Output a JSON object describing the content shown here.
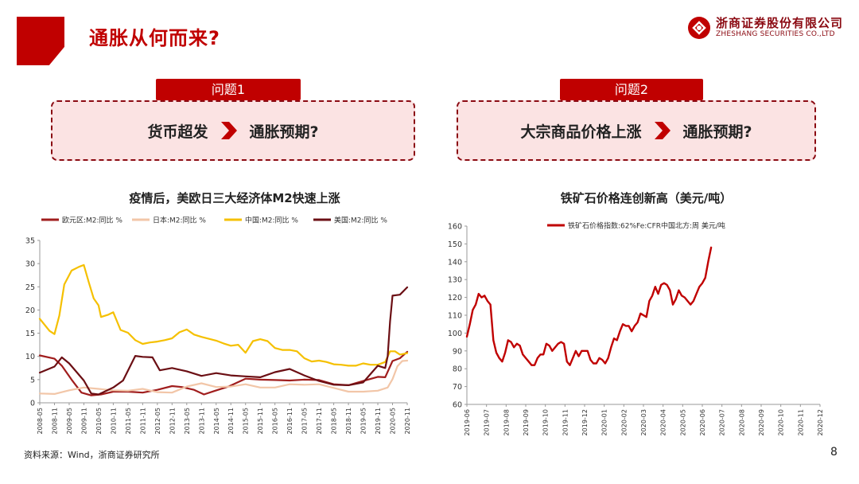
{
  "slide": {
    "title": "通胀从何而来?",
    "page_number": "8",
    "source": "资料来源：Wind，浙商证券研究所",
    "accent_color": "#c00000"
  },
  "logo": {
    "name_cn": "浙商证券股份有限公司",
    "name_en": "ZHESHANG SECURITIES CO.,LTD"
  },
  "questions": [
    {
      "tab": "问题1",
      "left": "货币超发",
      "right": "通胀预期?"
    },
    {
      "tab": "问题2",
      "left": "大宗商品价格上涨",
      "right": "通胀预期?"
    }
  ],
  "chart_data": [
    {
      "type": "line",
      "title": "疫情后，美欧日三大经济体M2快速上涨",
      "ylim": [
        0,
        35
      ],
      "yticks": [
        0,
        5,
        10,
        15,
        20,
        25,
        30,
        35
      ],
      "xlim": [
        "2008-05",
        "2020-11"
      ],
      "xticks": [
        "2008-05",
        "2008-11",
        "2009-05",
        "2009-11",
        "2010-05",
        "2010-11",
        "2011-05",
        "2011-11",
        "2012-05",
        "2012-11",
        "2013-05",
        "2013-11",
        "2014-05",
        "2014-11",
        "2015-05",
        "2015-11",
        "2016-05",
        "2016-11",
        "2017-05",
        "2017-11",
        "2018-05",
        "2018-11",
        "2019-05",
        "2019-11",
        "2020-05",
        "2020-11"
      ],
      "legend_position": "top",
      "series": [
        {
          "name": "欧元区:M2:同比 %",
          "color": "#a01d1d",
          "points": [
            [
              "2008-05",
              10.2
            ],
            [
              "2008-11",
              9.5
            ],
            [
              "2009-02",
              8.0
            ],
            [
              "2009-06",
              5.0
            ],
            [
              "2009-10",
              2.2
            ],
            [
              "2010-02",
              1.6
            ],
            [
              "2010-06",
              1.8
            ],
            [
              "2010-11",
              2.4
            ],
            [
              "2011-05",
              2.4
            ],
            [
              "2011-11",
              2.2
            ],
            [
              "2012-05",
              2.8
            ],
            [
              "2012-11",
              3.6
            ],
            [
              "2013-03",
              3.4
            ],
            [
              "2013-08",
              2.8
            ],
            [
              "2013-12",
              1.8
            ],
            [
              "2014-04",
              2.5
            ],
            [
              "2014-10",
              3.5
            ],
            [
              "2015-05",
              5.2
            ],
            [
              "2015-11",
              5.0
            ],
            [
              "2016-05",
              4.9
            ],
            [
              "2016-11",
              4.8
            ],
            [
              "2017-05",
              5.0
            ],
            [
              "2017-11",
              4.9
            ],
            [
              "2018-05",
              4.0
            ],
            [
              "2018-11",
              3.8
            ],
            [
              "2019-05",
              4.7
            ],
            [
              "2019-11",
              5.6
            ],
            [
              "2020-02",
              5.5
            ],
            [
              "2020-05",
              9.0
            ],
            [
              "2020-08",
              9.6
            ],
            [
              "2020-11",
              11.0
            ]
          ]
        },
        {
          "name": "日本:M2:同比 %",
          "color": "#f2c6a8",
          "points": [
            [
              "2008-05",
              2.0
            ],
            [
              "2008-11",
              1.9
            ],
            [
              "2009-05",
              2.7
            ],
            [
              "2009-11",
              3.3
            ],
            [
              "2010-05",
              3.0
            ],
            [
              "2010-11",
              2.7
            ],
            [
              "2011-05",
              2.6
            ],
            [
              "2011-11",
              3.0
            ],
            [
              "2012-05",
              2.3
            ],
            [
              "2012-11",
              2.2
            ],
            [
              "2013-05",
              3.5
            ],
            [
              "2013-11",
              4.2
            ],
            [
              "2014-05",
              3.4
            ],
            [
              "2014-11",
              3.5
            ],
            [
              "2015-05",
              4.0
            ],
            [
              "2015-11",
              3.3
            ],
            [
              "2016-05",
              3.3
            ],
            [
              "2016-11",
              4.0
            ],
            [
              "2017-05",
              3.9
            ],
            [
              "2017-11",
              4.0
            ],
            [
              "2018-05",
              3.2
            ],
            [
              "2018-11",
              2.4
            ],
            [
              "2019-05",
              2.4
            ],
            [
              "2019-11",
              2.6
            ],
            [
              "2020-03",
              3.3
            ],
            [
              "2020-05",
              5.1
            ],
            [
              "2020-07",
              7.9
            ],
            [
              "2020-09",
              9.0
            ],
            [
              "2020-11",
              9.1
            ]
          ]
        },
        {
          "name": "中国:M2:同比 %",
          "color": "#f5c000",
          "points": [
            [
              "2008-05",
              18.1
            ],
            [
              "2008-09",
              15.5
            ],
            [
              "2008-11",
              14.8
            ],
            [
              "2009-01",
              18.8
            ],
            [
              "2009-03",
              25.5
            ],
            [
              "2009-06",
              28.5
            ],
            [
              "2009-09",
              29.3
            ],
            [
              "2009-11",
              29.7
            ],
            [
              "2010-01",
              26.0
            ],
            [
              "2010-03",
              22.5
            ],
            [
              "2010-05",
              21.0
            ],
            [
              "2010-06",
              18.5
            ],
            [
              "2010-09",
              19.0
            ],
            [
              "2010-11",
              19.5
            ],
            [
              "2011-02",
              15.7
            ],
            [
              "2011-05",
              15.1
            ],
            [
              "2011-08",
              13.5
            ],
            [
              "2011-11",
              12.7
            ],
            [
              "2012-02",
              13.0
            ],
            [
              "2012-05",
              13.2
            ],
            [
              "2012-08",
              13.5
            ],
            [
              "2012-11",
              13.9
            ],
            [
              "2013-02",
              15.2
            ],
            [
              "2013-05",
              15.8
            ],
            [
              "2013-08",
              14.7
            ],
            [
              "2013-11",
              14.2
            ],
            [
              "2014-05",
              13.4
            ],
            [
              "2014-08",
              12.8
            ],
            [
              "2014-11",
              12.3
            ],
            [
              "2015-02",
              12.5
            ],
            [
              "2015-05",
              10.8
            ],
            [
              "2015-08",
              13.3
            ],
            [
              "2015-11",
              13.7
            ],
            [
              "2016-02",
              13.3
            ],
            [
              "2016-05",
              11.8
            ],
            [
              "2016-08",
              11.4
            ],
            [
              "2016-11",
              11.4
            ],
            [
              "2017-02",
              11.1
            ],
            [
              "2017-05",
              9.6
            ],
            [
              "2017-08",
              8.9
            ],
            [
              "2017-11",
              9.1
            ],
            [
              "2018-02",
              8.8
            ],
            [
              "2018-05",
              8.3
            ],
            [
              "2018-08",
              8.2
            ],
            [
              "2018-11",
              8.0
            ],
            [
              "2019-02",
              8.0
            ],
            [
              "2019-05",
              8.5
            ],
            [
              "2019-08",
              8.2
            ],
            [
              "2019-11",
              8.2
            ],
            [
              "2020-02",
              8.8
            ],
            [
              "2020-04",
              11.1
            ],
            [
              "2020-06",
              11.1
            ],
            [
              "2020-08",
              10.4
            ],
            [
              "2020-11",
              10.7
            ]
          ]
        },
        {
          "name": "美国:M2:同比 %",
          "color": "#6b0f14",
          "points": [
            [
              "2008-05",
              6.5
            ],
            [
              "2008-11",
              7.8
            ],
            [
              "2009-02",
              9.8
            ],
            [
              "2009-05",
              8.5
            ],
            [
              "2009-11",
              4.8
            ],
            [
              "2010-02",
              2.0
            ],
            [
              "2010-05",
              1.8
            ],
            [
              "2010-11",
              3.3
            ],
            [
              "2011-03",
              4.8
            ],
            [
              "2011-08",
              10.1
            ],
            [
              "2011-11",
              9.9
            ],
            [
              "2012-03",
              9.8
            ],
            [
              "2012-06",
              7.0
            ],
            [
              "2012-11",
              7.5
            ],
            [
              "2013-05",
              6.8
            ],
            [
              "2013-11",
              5.8
            ],
            [
              "2014-05",
              6.4
            ],
            [
              "2014-11",
              5.9
            ],
            [
              "2015-05",
              5.7
            ],
            [
              "2015-11",
              5.5
            ],
            [
              "2016-05",
              6.6
            ],
            [
              "2016-11",
              7.3
            ],
            [
              "2017-05",
              5.9
            ],
            [
              "2017-11",
              4.7
            ],
            [
              "2018-05",
              3.9
            ],
            [
              "2018-11",
              3.8
            ],
            [
              "2019-05",
              4.4
            ],
            [
              "2019-11",
              8.0
            ],
            [
              "2020-02",
              7.5
            ],
            [
              "2020-03",
              10.0
            ],
            [
              "2020-04",
              17.5
            ],
            [
              "2020-05",
              23.1
            ],
            [
              "2020-08",
              23.3
            ],
            [
              "2020-11",
              24.9
            ]
          ]
        }
      ]
    },
    {
      "type": "line",
      "title": "铁矿石价格连创新高（美元/吨）",
      "ylim": [
        60,
        160
      ],
      "yticks": [
        60,
        70,
        80,
        90,
        100,
        110,
        120,
        130,
        140,
        150,
        160
      ],
      "xlim": [
        "2019-06",
        "2020-12"
      ],
      "xticks": [
        "2019-06",
        "2019-07",
        "2019-08",
        "2019-09",
        "2019-10",
        "2019-11",
        "2019-12",
        "2020-01",
        "2020-02",
        "2020-03",
        "2020-04",
        "2020-05",
        "2020-06",
        "2020-07",
        "2020-08",
        "2020-09",
        "2020-10",
        "2020-11",
        "2020-12"
      ],
      "legend_position": "top",
      "series": [
        {
          "name": "铁矿石价格指数:62%Fe:CFR中国北方:周 美元/吨",
          "color": "#c00000",
          "points": [
            [
              0.0,
              98
            ],
            [
              0.15,
              105
            ],
            [
              0.3,
              113
            ],
            [
              0.45,
              116
            ],
            [
              0.6,
              122
            ],
            [
              0.75,
              120
            ],
            [
              0.9,
              121
            ],
            [
              1.05,
              118
            ],
            [
              1.2,
              116
            ],
            [
              1.35,
              96
            ],
            [
              1.5,
              89
            ],
            [
              1.65,
              86
            ],
            [
              1.8,
              84
            ],
            [
              1.95,
              89
            ],
            [
              2.1,
              96
            ],
            [
              2.25,
              95
            ],
            [
              2.4,
              92
            ],
            [
              2.55,
              94
            ],
            [
              2.7,
              93
            ],
            [
              2.85,
              88
            ],
            [
              3.0,
              86
            ],
            [
              3.15,
              84
            ],
            [
              3.3,
              82
            ],
            [
              3.45,
              82
            ],
            [
              3.6,
              86
            ],
            [
              3.75,
              88
            ],
            [
              3.9,
              88
            ],
            [
              4.05,
              94
            ],
            [
              4.2,
              93
            ],
            [
              4.35,
              90
            ],
            [
              4.5,
              92
            ],
            [
              4.65,
              94
            ],
            [
              4.8,
              95
            ],
            [
              4.95,
              94
            ],
            [
              5.1,
              84
            ],
            [
              5.25,
              82
            ],
            [
              5.4,
              86
            ],
            [
              5.55,
              90
            ],
            [
              5.7,
              87
            ],
            [
              5.85,
              90
            ],
            [
              6.0,
              90
            ],
            [
              6.15,
              90
            ],
            [
              6.3,
              85
            ],
            [
              6.45,
              83
            ],
            [
              6.6,
              83
            ],
            [
              6.75,
              86
            ],
            [
              6.9,
              85
            ],
            [
              7.05,
              83
            ],
            [
              7.2,
              86
            ],
            [
              7.35,
              92
            ],
            [
              7.5,
              97
            ],
            [
              7.65,
              96
            ],
            [
              7.8,
              101
            ],
            [
              7.95,
              105
            ],
            [
              8.1,
              104
            ],
            [
              8.25,
              104
            ],
            [
              8.4,
              101
            ],
            [
              8.55,
              104
            ],
            [
              8.7,
              106
            ],
            [
              8.85,
              111
            ],
            [
              9.0,
              110
            ],
            [
              9.15,
              109
            ],
            [
              9.3,
              118
            ],
            [
              9.45,
              121
            ],
            [
              9.6,
              126
            ],
            [
              9.75,
              122
            ],
            [
              9.9,
              127
            ],
            [
              10.05,
              128
            ],
            [
              10.2,
              127
            ],
            [
              10.35,
              124
            ],
            [
              10.5,
              116
            ],
            [
              10.65,
              119
            ],
            [
              10.8,
              124
            ],
            [
              10.95,
              121
            ],
            [
              11.1,
              120
            ],
            [
              11.25,
              118
            ],
            [
              11.4,
              116
            ],
            [
              11.55,
              118
            ],
            [
              11.7,
              122
            ],
            [
              11.85,
              126
            ],
            [
              12.0,
              128
            ],
            [
              12.15,
              131
            ],
            [
              12.3,
              140
            ],
            [
              12.45,
              148
            ]
          ]
        }
      ]
    }
  ]
}
